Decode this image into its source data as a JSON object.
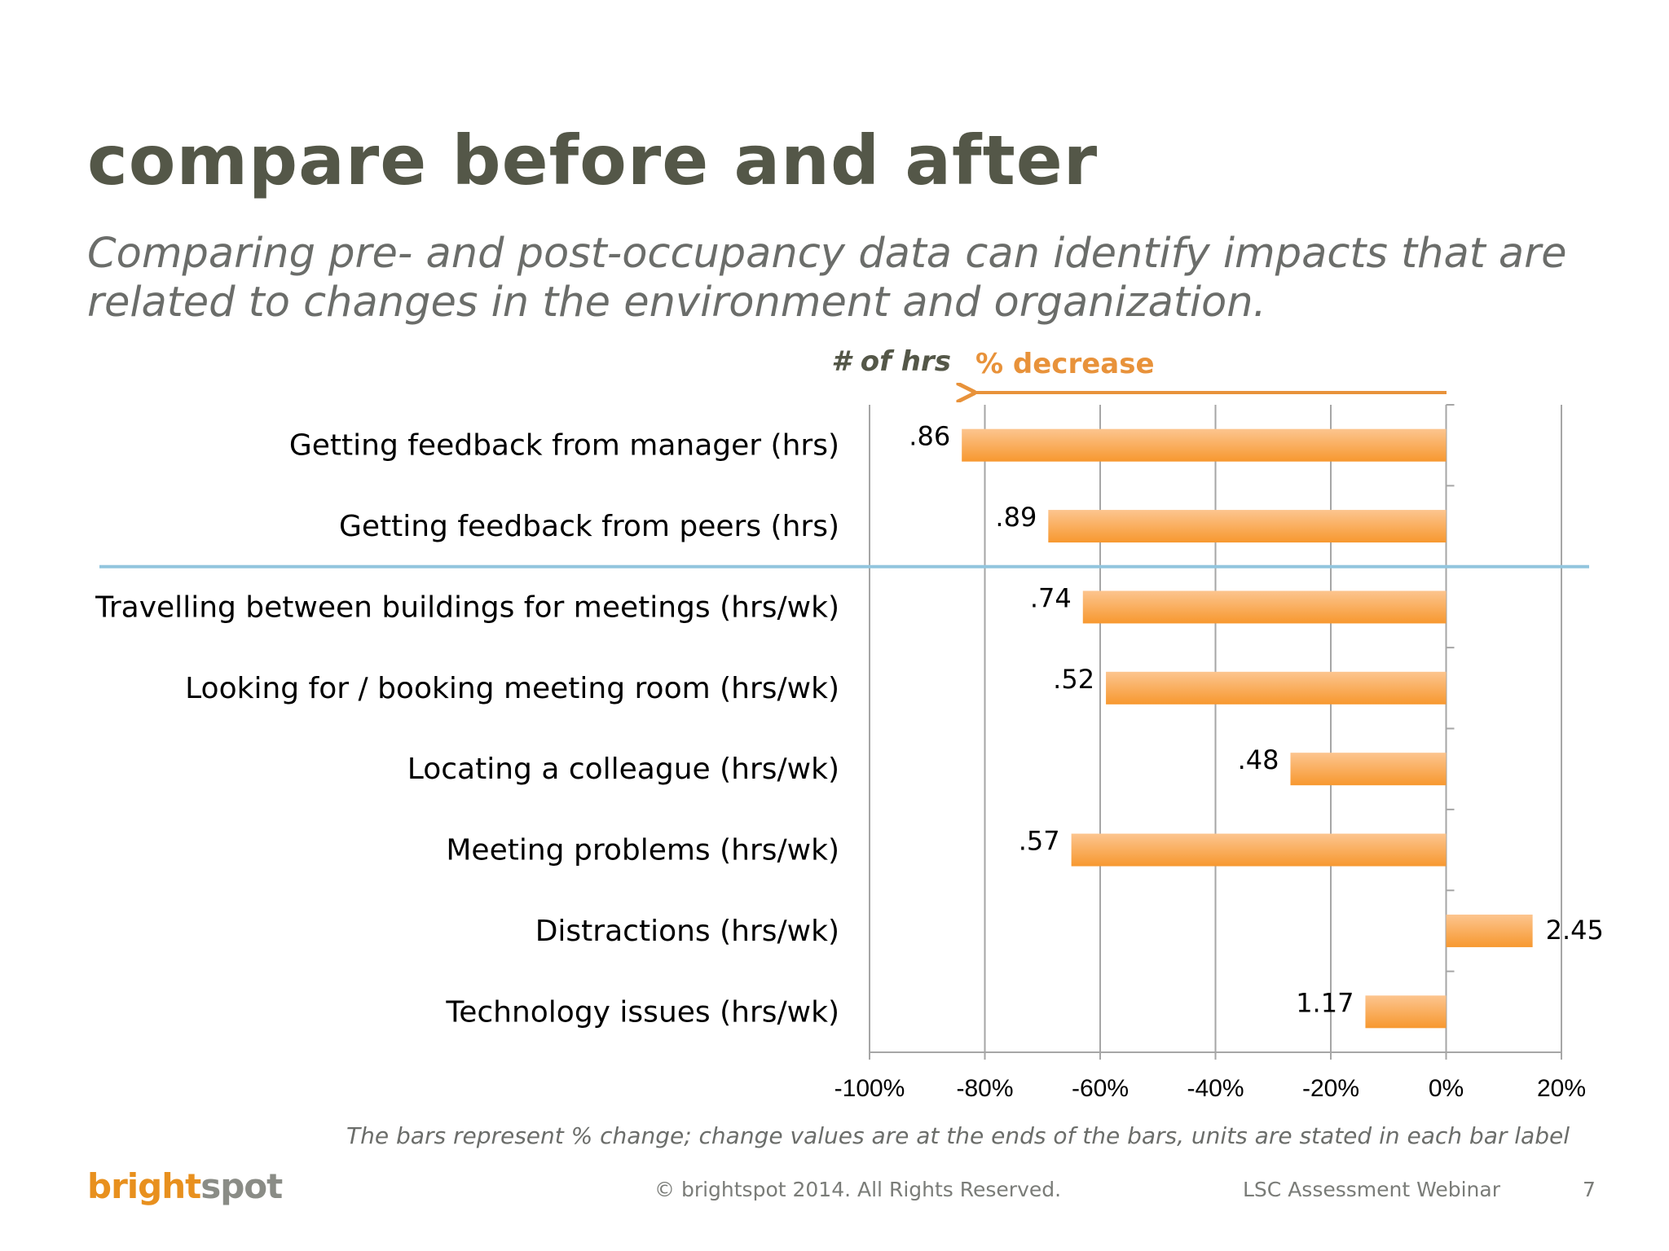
{
  "slide": {
    "title": "compare before and after",
    "subtitle": "Comparing pre- and post-occupancy data can identify impacts that are related to changes in the environment and organization.",
    "footnote": "The bars represent % change; change values are at the ends of the bars, units are stated in each bar label",
    "logo_bright": "bright",
    "logo_spot": "spot",
    "copyright": "© brightspot 2014. All Rights Reserved.",
    "event": "LSC Assessment Webinar",
    "page_number": "7"
  },
  "chart_data": {
    "type": "bar",
    "orientation": "horizontal",
    "header_hrs": "# of hrs",
    "header_decrease": "% decrease",
    "categories": [
      "Getting feedback from manager (hrs)",
      "Getting feedback from peers (hrs)",
      "Travelling between buildings for meetings (hrs/wk)",
      "Looking for / booking meeting room (hrs/wk)",
      "Locating a colleague (hrs/wk)",
      "Meeting problems (hrs/wk)",
      "Distractions (hrs/wk)",
      "Technology issues (hrs/wk)"
    ],
    "values": [
      -84,
      -69,
      -63,
      -59,
      -27,
      -65,
      15,
      -14
    ],
    "data_labels": [
      ".86",
      ".89",
      ".74",
      ".52",
      ".48",
      ".57",
      "2.45",
      "1.17"
    ],
    "xlim": [
      -100,
      20
    ],
    "xticks": [
      -100,
      -80,
      -60,
      -40,
      -20,
      0,
      20
    ],
    "xtick_labels": [
      "-100%",
      "-80%",
      "-60%",
      "-40%",
      "-20%",
      "0%",
      "20%"
    ],
    "grid": "vertical",
    "separator_after_index": 1,
    "colors": {
      "bar": "#f7982f",
      "bar_light": "#fcc58f",
      "accent": "#e8923a",
      "separator": "#92c5de",
      "grid": "#a6a6a6"
    }
  }
}
